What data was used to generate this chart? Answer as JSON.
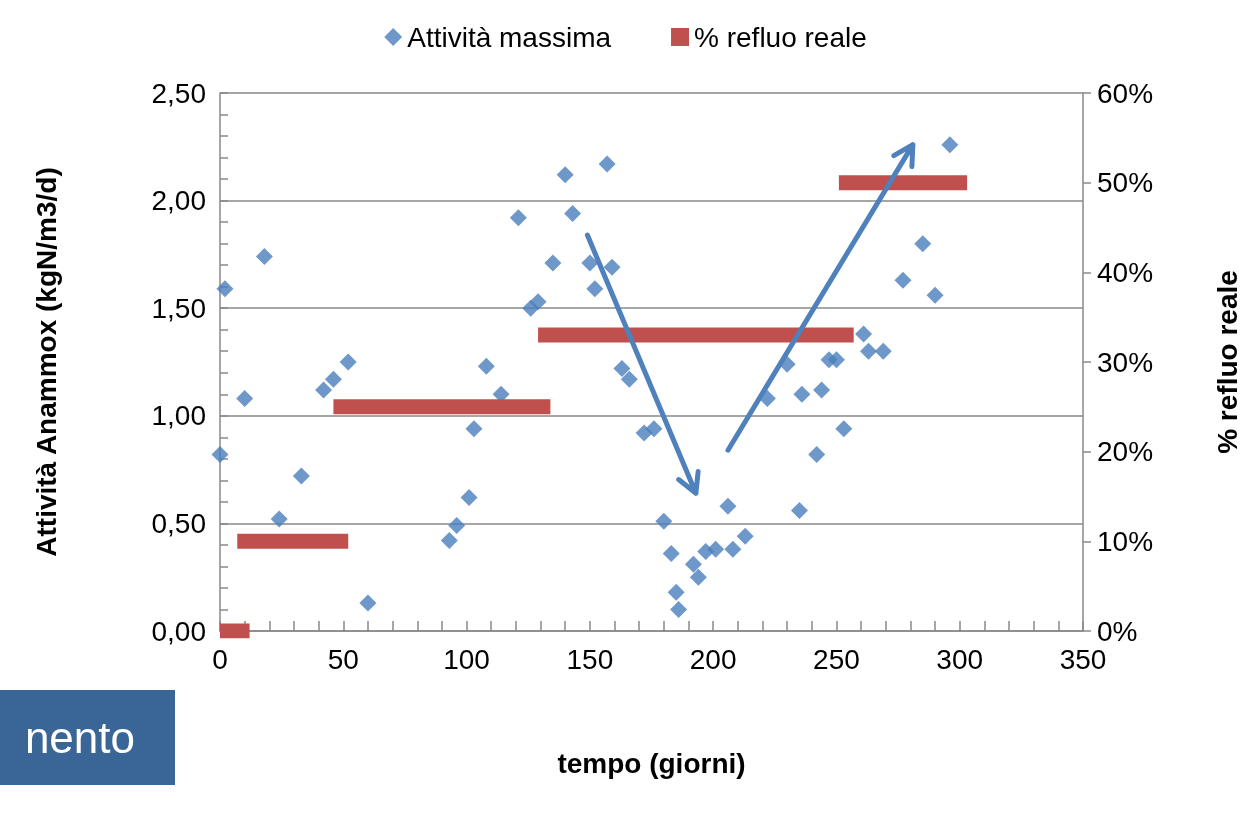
{
  "chart_data": {
    "type": "scatter",
    "xlabel": "tempo (giorni)",
    "ylabel": "Attività Anammox (kgN/m3/d)",
    "y2label": "% refluo reale",
    "annotations": [
      "nento"
    ],
    "legend": "top",
    "grid": "y",
    "xlim": [
      0,
      350
    ],
    "xticks": [
      0,
      {
        "value": 10,
        "label": null
      },
      {
        "value": 20,
        "label": null
      },
      {
        "value": 30,
        "label": null
      },
      {
        "value": 40,
        "label": null
      },
      50,
      {
        "value": 60,
        "label": null
      },
      {
        "value": 70,
        "label": null
      },
      {
        "value": 80,
        "label": null
      },
      {
        "value": 90,
        "label": null
      },
      100,
      {
        "value": 110,
        "label": null
      },
      {
        "value": 120,
        "label": null
      },
      {
        "value": 130,
        "label": null
      },
      {
        "value": 140,
        "label": null
      },
      150,
      {
        "value": 160,
        "label": null
      },
      {
        "value": 170,
        "label": null
      },
      {
        "value": 180,
        "label": null
      },
      {
        "value": 190,
        "label": null
      },
      200,
      {
        "value": 210,
        "label": null
      },
      {
        "value": 220,
        "label": null
      },
      {
        "value": 230,
        "label": null
      },
      {
        "value": 240,
        "label": null
      },
      250,
      {
        "value": 260,
        "label": null
      },
      {
        "value": 270,
        "label": null
      },
      {
        "value": 280,
        "label": null
      },
      {
        "value": 290,
        "label": null
      },
      300,
      {
        "value": 310,
        "label": null
      },
      {
        "value": 320,
        "label": null
      },
      {
        "value": 330,
        "label": null
      },
      {
        "value": 340,
        "label": null
      },
      350
    ],
    "ylim": [
      0,
      2.5
    ],
    "yticks": [
      {
        "value": 0,
        "label": "0,00"
      },
      {
        "value": 0.1,
        "label": null
      },
      {
        "value": 0.2,
        "label": null
      },
      {
        "value": 0.3,
        "label": null
      },
      {
        "value": 0.4,
        "label": null
      },
      {
        "value": 0.5,
        "label": "0,50"
      },
      {
        "value": 0.6,
        "label": null
      },
      {
        "value": 0.7,
        "label": null
      },
      {
        "value": 0.8,
        "label": null
      },
      {
        "value": 0.9,
        "label": null
      },
      {
        "value": 1,
        "label": "1,00"
      },
      {
        "value": 1.1,
        "label": null
      },
      {
        "value": 1.2,
        "label": null
      },
      {
        "value": 1.3,
        "label": null
      },
      {
        "value": 1.4,
        "label": null
      },
      {
        "value": 1.5,
        "label": "1,50"
      },
      {
        "value": 1.6,
        "label": null
      },
      {
        "value": 1.7,
        "label": null
      },
      {
        "value": 1.8,
        "label": null
      },
      {
        "value": 1.9,
        "label": null
      },
      {
        "value": 2,
        "label": "2,00"
      },
      {
        "value": 2.1,
        "label": null
      },
      {
        "value": 2.2,
        "label": null
      },
      {
        "value": 2.3,
        "label": null
      },
      {
        "value": 2.4,
        "label": null
      },
      {
        "value": 2.5,
        "label": "2,50"
      }
    ],
    "y2lim": [
      0,
      60
    ],
    "y2ticks": [
      {
        "value": 0,
        "label": "0%"
      },
      {
        "value": 10,
        "label": "10%"
      },
      {
        "value": 20,
        "label": "20%"
      },
      {
        "value": 30,
        "label": "30%"
      },
      {
        "value": 40,
        "label": "40%"
      },
      {
        "value": 50,
        "label": "50%"
      },
      {
        "value": 60,
        "label": "60%"
      }
    ],
    "series": [
      {
        "name": "Attività massima",
        "marker": "diamond",
        "color": "#4a7ebb",
        "x": [
          0,
          2,
          10,
          18,
          24,
          33,
          42,
          46,
          52,
          60,
          93,
          96,
          101,
          103,
          108,
          114,
          121,
          126,
          129,
          135,
          140,
          143,
          150,
          152,
          157,
          159,
          163,
          166,
          172,
          176,
          180,
          183,
          185,
          186,
          192,
          194,
          197,
          201,
          206,
          208,
          213,
          222,
          230,
          235,
          236,
          242,
          244,
          247,
          250,
          253,
          261,
          263,
          269,
          277,
          285,
          290,
          296
        ],
        "values": [
          0.82,
          1.59,
          1.08,
          1.74,
          0.52,
          0.72,
          1.12,
          1.17,
          1.25,
          0.13,
          0.42,
          0.49,
          0.62,
          0.94,
          1.23,
          1.1,
          1.92,
          1.5,
          1.53,
          1.71,
          2.12,
          1.94,
          1.71,
          1.59,
          2.17,
          1.69,
          1.22,
          1.17,
          0.92,
          0.94,
          0.51,
          0.36,
          0.18,
          0.1,
          0.31,
          0.25,
          0.37,
          0.38,
          0.58,
          0.38,
          0.44,
          1.08,
          1.24,
          0.56,
          1.1,
          0.82,
          1.12,
          1.26,
          1.26,
          0.94,
          1.38,
          1.3,
          1.3,
          1.63,
          1.8,
          1.56,
          2.26
        ]
      },
      {
        "name": "% refluo reale",
        "type": "line",
        "axis": "y2",
        "marker": "none",
        "color": "#c0504d",
        "x": [
          0,
          12
        ],
        "values": [
          0,
          0
        ]
      },
      {
        "type": "line",
        "axis": "y2",
        "marker": "none",
        "color": "#c0504d",
        "x": [
          7,
          52
        ],
        "values": [
          10,
          10
        ]
      },
      {
        "type": "line",
        "axis": "y2",
        "marker": "none",
        "color": "#c0504d",
        "x": [
          46,
          134
        ],
        "values": [
          25,
          25
        ]
      },
      {
        "type": "line",
        "axis": "y2",
        "marker": "none",
        "color": "#c0504d",
        "x": [
          129,
          257
        ],
        "values": [
          33,
          33
        ]
      },
      {
        "type": "line",
        "axis": "y2",
        "marker": "none",
        "color": "#c0504d",
        "x": [
          251,
          303
        ],
        "values": [
          50,
          50
        ]
      }
    ]
  }
}
